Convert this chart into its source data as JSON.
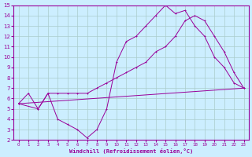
{
  "xlabel": "Windchill (Refroidissement éolien,°C)",
  "bg_color": "#cceeff",
  "line_color": "#990099",
  "grid_color": "#aacccc",
  "xlim": [
    -0.5,
    23.5
  ],
  "ylim": [
    2,
    15
  ],
  "xticks": [
    0,
    1,
    2,
    3,
    4,
    5,
    6,
    7,
    8,
    9,
    10,
    11,
    12,
    13,
    14,
    15,
    16,
    17,
    18,
    19,
    20,
    21,
    22,
    23
  ],
  "yticks": [
    2,
    3,
    4,
    5,
    6,
    7,
    8,
    9,
    10,
    11,
    12,
    13,
    14,
    15
  ],
  "line1_x": [
    0,
    1,
    2,
    3,
    4,
    5,
    6,
    7,
    8,
    9,
    10,
    11,
    12,
    13,
    14,
    15,
    16,
    17,
    18,
    19,
    20,
    21,
    22,
    23
  ],
  "line1_y": [
    5.5,
    6.5,
    5.0,
    6.5,
    4.0,
    3.5,
    3.0,
    2.2,
    3.0,
    5.0,
    9.5,
    11.5,
    12.0,
    13.0,
    14.0,
    15.0,
    14.2,
    14.5,
    13.0,
    12.0,
    10.0,
    9.0,
    7.5,
    7.0
  ],
  "line2_x": [
    0,
    2,
    3,
    4,
    5,
    6,
    7,
    8,
    9,
    10,
    11,
    12,
    13,
    14,
    15,
    16,
    17,
    18,
    19,
    20,
    21,
    22,
    23
  ],
  "line2_y": [
    5.5,
    5.0,
    6.5,
    6.5,
    6.5,
    6.5,
    6.5,
    7.0,
    7.5,
    8.0,
    8.5,
    9.0,
    9.5,
    10.5,
    11.0,
    12.0,
    13.5,
    14.0,
    13.5,
    12.0,
    10.5,
    8.5,
    7.0
  ],
  "line3_x": [
    0,
    23
  ],
  "line3_y": [
    5.5,
    7.0
  ]
}
